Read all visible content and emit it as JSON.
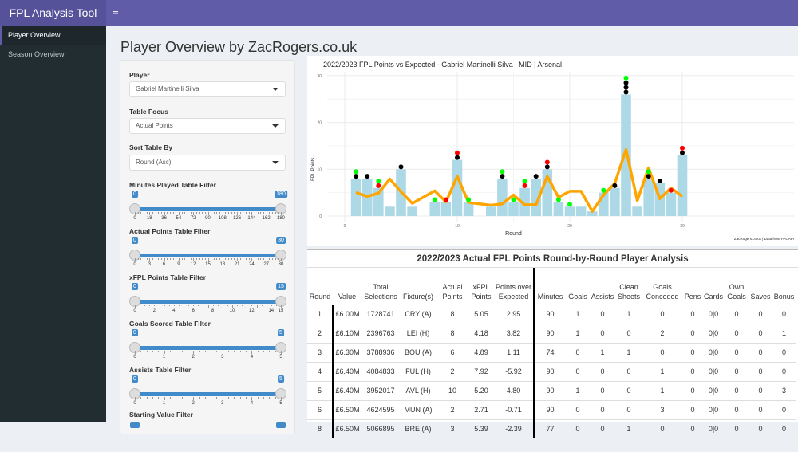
{
  "header": {
    "app_title": "FPL Analysis Tool",
    "menu_icon": "hamburger-icon"
  },
  "sidebar": {
    "items": [
      {
        "label": "Player Overview",
        "active": true
      },
      {
        "label": "Season Overview",
        "active": false
      }
    ]
  },
  "page": {
    "title": "Player Overview by ZacRogers.co.uk"
  },
  "filters": {
    "player": {
      "label": "Player",
      "value": "Gabriel Martinelli Silva"
    },
    "table_focus": {
      "label": "Table Focus",
      "value": "Actual Points"
    },
    "sort_by": {
      "label": "Sort Table By",
      "value": "Round (Asc)"
    },
    "sliders": [
      {
        "label": "Minutes Played Table Filter",
        "min": 0,
        "max": 180,
        "from": "0",
        "to": "180",
        "ticks": [
          "0",
          "18",
          "36",
          "54",
          "72",
          "90",
          "108",
          "126",
          "144",
          "162",
          "180"
        ]
      },
      {
        "label": "Actual Points Table Filter",
        "min": 0,
        "max": 30,
        "from": "0",
        "to": "30",
        "ticks": [
          "0",
          "3",
          "6",
          "9",
          "12",
          "15",
          "18",
          "21",
          "24",
          "27",
          "30"
        ]
      },
      {
        "label": "xFPL Points Table Filter",
        "min": 0,
        "max": 15,
        "from": "0",
        "to": "15",
        "ticks": [
          "0",
          "2",
          "4",
          "6",
          "8",
          "10",
          "12",
          "14",
          "15"
        ]
      },
      {
        "label": "Goals Scored Table Filter",
        "min": 0,
        "max": 5,
        "from": "0",
        "to": "5",
        "ticks": [
          "0",
          "1",
          "2",
          "3",
          "4",
          "5"
        ]
      },
      {
        "label": "Assists Table Filter",
        "min": 0,
        "max": 5,
        "from": "0",
        "to": "5",
        "ticks": [
          "0",
          "1",
          "2",
          "3",
          "4",
          "5"
        ]
      }
    ],
    "starting_value": {
      "label": "Starting Value Filter"
    }
  },
  "chart_data": {
    "type": "bar+line",
    "title": "2022/2023 FPL Points vs Expected - Gabriel Martinelli Silva | MID | Arsenal",
    "xlabel": "Round",
    "ylabel": "FPL Points",
    "caption": "ZacRogers.co.uk | Data from FPL API",
    "xlim": [
      0,
      30
    ],
    "ylim": [
      0,
      30
    ],
    "xticks": [
      "0",
      "10",
      "20",
      "30"
    ],
    "yticks": [
      "0",
      "10",
      "20",
      "30"
    ],
    "grid": true,
    "colors": {
      "bar": "#add8e6",
      "line": "#ffa500",
      "goal": "#000000",
      "assist": "#ff0000",
      "clean_sheet": "#00ff00"
    },
    "rounds": [
      1,
      2,
      3,
      4,
      5,
      6,
      8,
      9,
      10,
      11,
      13,
      14,
      15,
      16,
      17,
      18,
      19,
      20,
      21,
      22,
      23,
      24,
      25,
      26,
      27,
      28,
      29,
      30
    ],
    "actual_points": [
      8,
      8,
      6,
      2,
      10,
      2,
      3,
      3,
      12,
      3,
      2,
      8,
      3,
      6,
      8,
      10,
      3,
      2,
      2,
      1,
      5,
      6,
      26,
      2,
      8,
      7,
      5,
      13
    ],
    "xfpl_points": [
      5.05,
      4.18,
      4.89,
      7.92,
      5.2,
      2.71,
      5.39,
      3.0,
      8.5,
      2.9,
      2.3,
      2.6,
      4.5,
      2.4,
      2.4,
      8.5,
      4.0,
      5.3,
      5.3,
      1.0,
      4.5,
      7.0,
      14.2,
      3.3,
      10.3,
      3.7,
      6.0,
      4.2
    ],
    "markers": {
      "1": [
        "goal",
        "clean_sheet"
      ],
      "2": [
        "goal"
      ],
      "3": [
        "assist",
        "clean_sheet"
      ],
      "5": [
        "goal"
      ],
      "8": [
        "clean_sheet"
      ],
      "9": [
        "assist"
      ],
      "10": [
        "goal",
        "assist"
      ],
      "11": [
        "clean_sheet"
      ],
      "14": [
        "goal",
        "clean_sheet"
      ],
      "15": [
        "clean_sheet"
      ],
      "16": [
        "assist",
        "clean_sheet"
      ],
      "17": [
        "goal"
      ],
      "18": [
        "goal",
        "assist"
      ],
      "19": [
        "clean_sheet"
      ],
      "20": [
        "clean_sheet"
      ],
      "23": [
        "clean_sheet"
      ],
      "24": [
        "goal"
      ],
      "25": [
        "goal",
        "goal",
        "goal",
        "clean_sheet"
      ],
      "27": [
        "goal",
        "clean_sheet"
      ],
      "28": [
        "goal"
      ],
      "29": [
        "assist"
      ],
      "30": [
        "goal",
        "assist"
      ]
    }
  },
  "table": {
    "title": "2022/2023 Actual FPL Points Round-by-Round Player Analysis",
    "columns": [
      [
        "Round"
      ],
      [
        "Value"
      ],
      [
        "Total",
        "Selections"
      ],
      [
        "Fixture(s)"
      ],
      [
        "Actual",
        "Points"
      ],
      [
        "xFPL",
        "Points"
      ],
      [
        "Points over",
        "Expected"
      ],
      [
        "Minutes"
      ],
      [
        "Goals"
      ],
      [
        "Assists"
      ],
      [
        "Clean",
        "Sheets"
      ],
      [
        "Goals",
        "Conceded"
      ],
      [
        "Pens"
      ],
      [
        "Cards"
      ],
      [
        "Own",
        "Goals"
      ],
      [
        "Saves"
      ],
      [
        "Bonus"
      ]
    ],
    "rows": [
      [
        "1",
        "£6.00M",
        "1728741",
        "CRY (A)",
        "8",
        "5.05",
        "2.95",
        "90",
        "1",
        "0",
        "1",
        "0",
        "0",
        "0|0",
        "0",
        "0",
        "0"
      ],
      [
        "2",
        "£6.10M",
        "2396763",
        "LEI (H)",
        "8",
        "4.18",
        "3.82",
        "90",
        "1",
        "0",
        "0",
        "2",
        "0",
        "0|0",
        "0",
        "0",
        "1"
      ],
      [
        "3",
        "£6.30M",
        "3788936",
        "BOU (A)",
        "6",
        "4.89",
        "1.11",
        "74",
        "0",
        "1",
        "1",
        "0",
        "0",
        "0|0",
        "0",
        "0",
        "0"
      ],
      [
        "4",
        "£6.40M",
        "4084833",
        "FUL (H)",
        "2",
        "7.92",
        "-5.92",
        "90",
        "0",
        "0",
        "0",
        "1",
        "0",
        "0|0",
        "0",
        "0",
        "0"
      ],
      [
        "5",
        "£6.40M",
        "3952017",
        "AVL (H)",
        "10",
        "5.20",
        "4.80",
        "90",
        "1",
        "0",
        "0",
        "1",
        "0",
        "0|0",
        "0",
        "0",
        "3"
      ],
      [
        "6",
        "£6.50M",
        "4624595",
        "MUN (A)",
        "2",
        "2.71",
        "-0.71",
        "90",
        "0",
        "0",
        "0",
        "3",
        "0",
        "0|0",
        "0",
        "0",
        "0"
      ],
      [
        "8",
        "£6.50M",
        "5066895",
        "BRE (A)",
        "3",
        "5.39",
        "-2.39",
        "77",
        "0",
        "0",
        "1",
        "0",
        "0",
        "0|0",
        "0",
        "0",
        "0"
      ]
    ]
  }
}
